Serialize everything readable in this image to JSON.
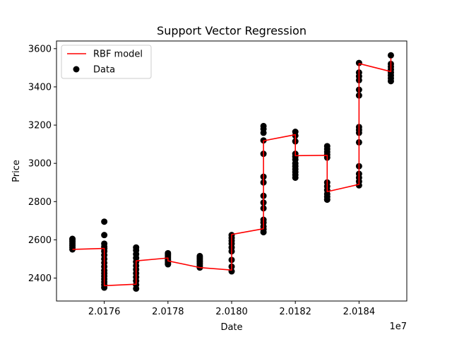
{
  "chart_data": {
    "type": "scatter",
    "title": "Support Vector Regression",
    "xlabel": "Date",
    "ylabel": "Price",
    "x_offset_label": "1e7",
    "xlim": [
      20174.5,
      20185.5
    ],
    "ylim": [
      2280,
      3640
    ],
    "x_ticks": [
      20176,
      20178,
      20180,
      20182,
      20184
    ],
    "x_tick_labels": [
      "2.0176",
      "2.0178",
      "2.0180",
      "2.0182",
      "2.0184"
    ],
    "y_ticks": [
      2400,
      2600,
      2800,
      3000,
      3200,
      3400,
      3600
    ],
    "y_tick_labels": [
      "2400",
      "2600",
      "2800",
      "3000",
      "3200",
      "3400",
      "3600"
    ],
    "legend": {
      "placement": "top-left",
      "entries": [
        {
          "label": "RBF model",
          "kind": "line",
          "color": "#ff0000"
        },
        {
          "label": "Data",
          "kind": "marker",
          "color": "#000000"
        }
      ]
    },
    "series": [
      {
        "name": "Data",
        "kind": "scatter",
        "color": "#000000",
        "points": [
          [
            20175,
            2550
          ],
          [
            20175,
            2560
          ],
          [
            20175,
            2570
          ],
          [
            20175,
            2580
          ],
          [
            20175,
            2590
          ],
          [
            20175,
            2600
          ],
          [
            20175,
            2605
          ],
          [
            20176,
            2695
          ],
          [
            20176,
            2625
          ],
          [
            20176,
            2580
          ],
          [
            20176,
            2565
          ],
          [
            20176,
            2555
          ],
          [
            20176,
            2540
          ],
          [
            20176,
            2520
          ],
          [
            20176,
            2500
          ],
          [
            20176,
            2480
          ],
          [
            20176,
            2460
          ],
          [
            20176,
            2440
          ],
          [
            20176,
            2425
          ],
          [
            20176,
            2410
          ],
          [
            20176,
            2395
          ],
          [
            20176,
            2380
          ],
          [
            20176,
            2365
          ],
          [
            20176,
            2350
          ],
          [
            20177,
            2560
          ],
          [
            20177,
            2545
          ],
          [
            20177,
            2525
          ],
          [
            20177,
            2505
          ],
          [
            20177,
            2485
          ],
          [
            20177,
            2465
          ],
          [
            20177,
            2445
          ],
          [
            20177,
            2425
          ],
          [
            20177,
            2405
          ],
          [
            20177,
            2385
          ],
          [
            20177,
            2365
          ],
          [
            20177,
            2345
          ],
          [
            20178,
            2530
          ],
          [
            20178,
            2520
          ],
          [
            20178,
            2510
          ],
          [
            20178,
            2500
          ],
          [
            20178,
            2490
          ],
          [
            20178,
            2480
          ],
          [
            20178,
            2472
          ],
          [
            20179,
            2515
          ],
          [
            20179,
            2505
          ],
          [
            20179,
            2495
          ],
          [
            20179,
            2485
          ],
          [
            20179,
            2475
          ],
          [
            20179,
            2465
          ],
          [
            20179,
            2455
          ],
          [
            20180,
            2625
          ],
          [
            20180,
            2610
          ],
          [
            20180,
            2595
          ],
          [
            20180,
            2580
          ],
          [
            20180,
            2560
          ],
          [
            20180,
            2540
          ],
          [
            20180,
            2495
          ],
          [
            20180,
            2460
          ],
          [
            20180,
            2435
          ],
          [
            20181,
            3195
          ],
          [
            20181,
            3180
          ],
          [
            20181,
            3160
          ],
          [
            20181,
            3120
          ],
          [
            20181,
            3050
          ],
          [
            20181,
            2930
          ],
          [
            20181,
            2900
          ],
          [
            20181,
            2830
          ],
          [
            20181,
            2795
          ],
          [
            20181,
            2765
          ],
          [
            20181,
            2705
          ],
          [
            20181,
            2690
          ],
          [
            20181,
            2670
          ],
          [
            20181,
            2655
          ],
          [
            20181,
            2640
          ],
          [
            20182,
            3165
          ],
          [
            20182,
            3145
          ],
          [
            20182,
            3115
          ],
          [
            20182,
            3050
          ],
          [
            20182,
            3035
          ],
          [
            20182,
            3020
          ],
          [
            20182,
            3000
          ],
          [
            20182,
            2985
          ],
          [
            20182,
            2970
          ],
          [
            20182,
            2955
          ],
          [
            20182,
            2940
          ],
          [
            20182,
            2925
          ],
          [
            20183,
            3090
          ],
          [
            20183,
            3075
          ],
          [
            20183,
            3060
          ],
          [
            20183,
            3045
          ],
          [
            20183,
            3030
          ],
          [
            20183,
            2900
          ],
          [
            20183,
            2880
          ],
          [
            20183,
            2860
          ],
          [
            20183,
            2840
          ],
          [
            20183,
            2825
          ],
          [
            20183,
            2810
          ],
          [
            20184,
            3525
          ],
          [
            20184,
            3475
          ],
          [
            20184,
            3455
          ],
          [
            20184,
            3435
          ],
          [
            20184,
            3385
          ],
          [
            20184,
            3355
          ],
          [
            20184,
            3190
          ],
          [
            20184,
            3175
          ],
          [
            20184,
            3160
          ],
          [
            20184,
            3110
          ],
          [
            20184,
            2985
          ],
          [
            20184,
            2945
          ],
          [
            20184,
            2925
          ],
          [
            20184,
            2905
          ],
          [
            20184,
            2885
          ],
          [
            20185,
            3565
          ],
          [
            20185,
            3520
          ],
          [
            20185,
            3505
          ],
          [
            20185,
            3490
          ],
          [
            20185,
            3475
          ],
          [
            20185,
            3460
          ],
          [
            20185,
            3445
          ],
          [
            20185,
            3430
          ]
        ]
      },
      {
        "name": "RBF model",
        "kind": "line",
        "color": "#ff0000",
        "points": [
          [
            20175,
            2550
          ],
          [
            20176,
            2555
          ],
          [
            20176,
            2360
          ],
          [
            20177,
            2368
          ],
          [
            20177,
            2490
          ],
          [
            20178,
            2505
          ],
          [
            20178,
            2490
          ],
          [
            20179,
            2455
          ],
          [
            20180,
            2442
          ],
          [
            20180,
            2628
          ],
          [
            20181,
            2658
          ],
          [
            20181,
            3118
          ],
          [
            20182,
            3150
          ],
          [
            20182,
            3040
          ],
          [
            20183,
            3042
          ],
          [
            20183,
            2852
          ],
          [
            20184,
            2890
          ],
          [
            20184,
            3522
          ],
          [
            20185,
            3480
          ],
          [
            20185,
            3550
          ]
        ]
      }
    ]
  }
}
